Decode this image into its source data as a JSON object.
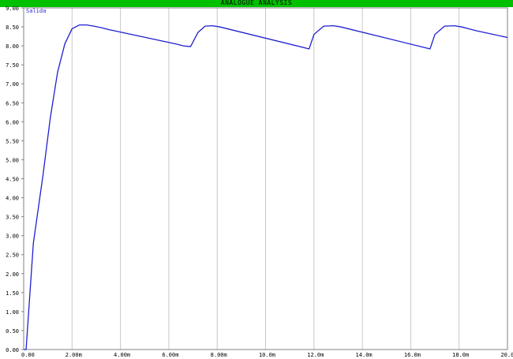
{
  "window": {
    "title": "ANALOGUE ANALYSIS"
  },
  "colors": {
    "title_bar": "#00c000",
    "trace": "#1f1fd0",
    "grid": "#c8c8c8",
    "axis": "#808080"
  },
  "chart_data": {
    "type": "line",
    "title": "",
    "xlabel": "",
    "ylabel": "",
    "xlim": [
      0,
      0.02
    ],
    "ylim": [
      0,
      9
    ],
    "grid": true,
    "legend_position": "top-left",
    "x_ticks": [
      0,
      0.002,
      0.004,
      0.006,
      0.008,
      0.01,
      0.012,
      0.014,
      0.016,
      0.018,
      0.02
    ],
    "x_tick_labels": [
      "0.00",
      "2.00m",
      "4.00m",
      "6.00m",
      "8.00m",
      "10.0m",
      "12.0m",
      "14.0m",
      "16.0m",
      "18.0m",
      "20.0m"
    ],
    "y_ticks": [
      0,
      0.5,
      1,
      1.5,
      2,
      2.5,
      3,
      3.5,
      4,
      4.5,
      5,
      5.5,
      6,
      6.5,
      7,
      7.5,
      8,
      8.5,
      9
    ],
    "y_tick_labels": [
      "0.00",
      "0.50",
      "1.00",
      "1.50",
      "2.00",
      "2.50",
      "3.00",
      "3.50",
      "4.00",
      "4.50",
      "5.00",
      "5.50",
      "6.00",
      "6.50",
      "7.00",
      "7.50",
      "8.00",
      "8.50",
      "9.00"
    ],
    "series": [
      {
        "name": "Salida",
        "x": [
          0,
          0.0001,
          0.0004,
          0.0008,
          0.0011,
          0.0014,
          0.0017,
          0.002,
          0.0023,
          0.0026,
          0.0029,
          0.0032,
          0.0035,
          0.0063,
          0.0066,
          0.0069,
          0.0072,
          0.0075,
          0.0078,
          0.0081,
          0.0118,
          0.012,
          0.0124,
          0.0128,
          0.0131,
          0.0168,
          0.017,
          0.0174,
          0.0178,
          0.0181,
          0.0184,
          0.0187,
          0.02
        ],
        "y": [
          0,
          0,
          2.8,
          4.6,
          6.1,
          7.3,
          8.05,
          8.45,
          8.55,
          8.55,
          8.52,
          8.48,
          8.43,
          8.05,
          8.0,
          7.98,
          8.35,
          8.52,
          8.53,
          8.5,
          7.92,
          8.3,
          8.52,
          8.53,
          8.5,
          7.92,
          8.3,
          8.52,
          8.53,
          8.5,
          8.45,
          8.4,
          8.22
        ]
      }
    ]
  }
}
